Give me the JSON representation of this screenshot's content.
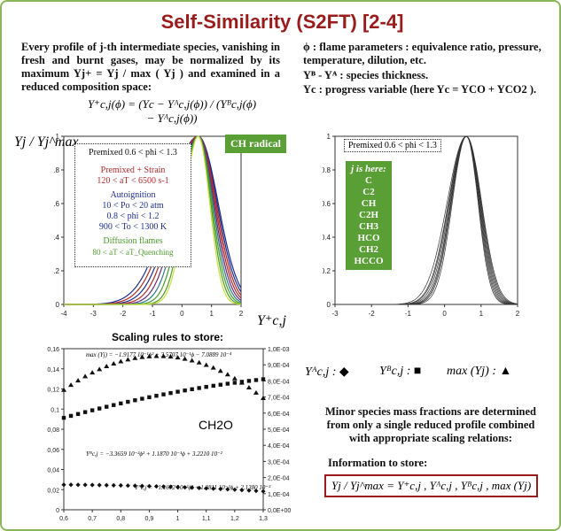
{
  "title": "Self-Similarity (S2FT) [2-4]",
  "intro_text": "Every profile of j-th intermediate species, vanishing in fresh and burnt gases, may be normalized by its maximum Yj+ = Yj / max ( Yj ) and examined in a reduced composition space:",
  "formula_main": "Y⁺c,j(ϕ) = (Yc − Yᴬc,j(ϕ)) / (Yᴮc,j(ϕ) − Yᴬc,j(ϕ))",
  "definitions": {
    "phi": "ϕ : flame parameters : equivalence ratio, pressure, temperature, dilution, etc.",
    "thickness": "Yᴮ - Yᴬ : species thickness.",
    "progress": "Yc : progress variable (here Yc = YCO + YCO2 )."
  },
  "left_plot": {
    "ylabel": "Yj / Yj^max",
    "xlabel": "Y⁺c,j",
    "badge": "CH radical",
    "xticks": [
      "-4",
      "-3",
      "-2",
      "-1",
      "0",
      "1",
      "2"
    ],
    "yticks": [
      "0",
      "0.2",
      "0.4",
      "0.6",
      "0.8",
      "1"
    ],
    "legend": {
      "header": "Premixed 0.6 < phi < 1.3",
      "strain_title": "Premixed + Strain",
      "strain_range": "120 < aT < 6500 s-1",
      "auto_title": "Autoignition",
      "auto_p": "10 < Po < 20 atm",
      "auto_phi": "0.8 < phi < 1.2",
      "auto_t": "900 < To < 1300 K",
      "diff_title": "Diffusion flames",
      "diff_range": "80 < aT < aT_Quenching"
    },
    "colors": {
      "strain": "#b02a2a",
      "auto": "#1d2f8a",
      "diff": "#4b9a2a"
    }
  },
  "right_plot": {
    "header": "Premixed 0.6 < phi < 1.3",
    "species_title": "j is here:",
    "species": [
      "C",
      "C2",
      "CH",
      "C2H",
      "CH3",
      "HCO",
      "CH2",
      "HCCO"
    ],
    "xticks": [
      "-3",
      "-2",
      "-1",
      "0",
      "1",
      "2"
    ],
    "yticks": [
      "0",
      "0.2",
      "0.4",
      "0.6",
      "0.8",
      "1"
    ]
  },
  "scaling": {
    "title": "Scaling rules to store:",
    "species_label": "CH2O",
    "x_ticks": [
      "0,6",
      "0,7",
      "0,8",
      "0,9",
      "1",
      "1,1",
      "1,2",
      "1,3"
    ],
    "left_ticks": [
      "0",
      "0,02",
      "0,04",
      "0,06",
      "0,08",
      "0,1",
      "0,12",
      "0,14",
      "0,16"
    ],
    "right_ticks": [
      "0,0E+00",
      "1,0E-04",
      "2,0E-04",
      "3,0E-04",
      "4,0E-04",
      "5,0E-04",
      "6,0E-04",
      "7,0E-04",
      "8,0E-04",
      "9,0E-04",
      "1,0E-03"
    ],
    "eq_max": "max (Yj) = −1.9177 10⁻¹ϕ² + 3.5707 10⁻¹ϕ − 7.0889 10⁻⁴",
    "eq_b": "Yᴮc,j = −3.3659 10⁻²ϕ² + 1.1870 10⁻¹ϕ + 3.2210 10⁻²",
    "eq_a": "Yᴬc,j = −1.1672 10⁻²ϕ² + 1.2811 10⁻²ϕ + 2.1380 10⁻²"
  },
  "symbols": {
    "a": "Yᴬc,j : ◆",
    "b": "Yᴮc,j : ■",
    "max": "max (Yj) : ▲"
  },
  "minor_text": "Minor species mass fractions are determined from only a single reduced profile combined with appropriate scaling relations:",
  "info_title": "Information to store:",
  "info_formula": "Yj / Yj^max = Y⁺c,j , Yᴬc,j , Yᴮc,j , max (Yj)"
}
